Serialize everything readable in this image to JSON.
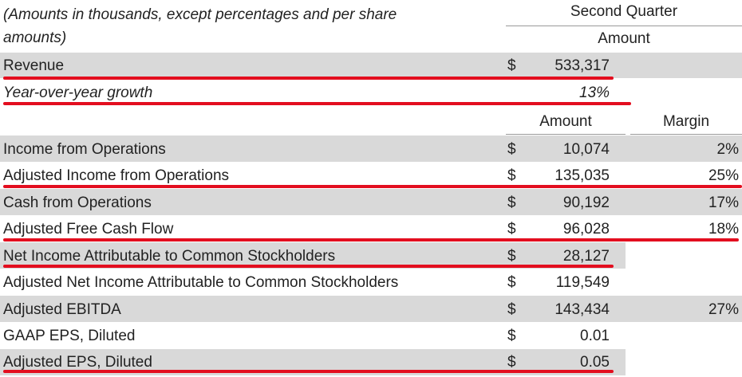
{
  "header": {
    "note_line1": "(Amounts in thousands, except percentages and per share",
    "note_line2": "amounts)",
    "period": "Second Quarter",
    "amount_label": "Amount"
  },
  "top_rows": [
    {
      "label": "Revenue",
      "currency": "$",
      "amount": "533,317"
    },
    {
      "label": "Year-over-year growth",
      "amount": "13%"
    }
  ],
  "sub_header": {
    "amount_label": "Amount",
    "margin_label": "Margin"
  },
  "rows": [
    {
      "label": "Income from Operations",
      "currency": "$",
      "amount": "10,074",
      "margin": "2%"
    },
    {
      "label": "Adjusted Income from Operations",
      "currency": "$",
      "amount": "135,035",
      "margin": "25%"
    },
    {
      "label": "Cash from Operations",
      "currency": "$",
      "amount": "90,192",
      "margin": "17%"
    },
    {
      "label": "Adjusted Free Cash Flow",
      "currency": "$",
      "amount": "96,028",
      "margin": "18%"
    },
    {
      "label": "Net Income Attributable to Common Stockholders",
      "currency": "$",
      "amount": "28,127",
      "margin": ""
    },
    {
      "label": "Adjusted Net Income Attributable to Common Stockholders",
      "currency": "$",
      "amount": "119,549",
      "margin": ""
    },
    {
      "label": "Adjusted EBITDA",
      "currency": "$",
      "amount": "143,434",
      "margin": "27%"
    },
    {
      "label": "GAAP EPS, Diluted",
      "currency": "$",
      "amount": "0.01",
      "margin": ""
    },
    {
      "label": "Adjusted EPS, Diluted",
      "currency": "$",
      "amount": "0.05",
      "margin": ""
    }
  ],
  "colors": {
    "highlight_underline": "#e30e1f",
    "row_shade": "#d9d9d9"
  }
}
